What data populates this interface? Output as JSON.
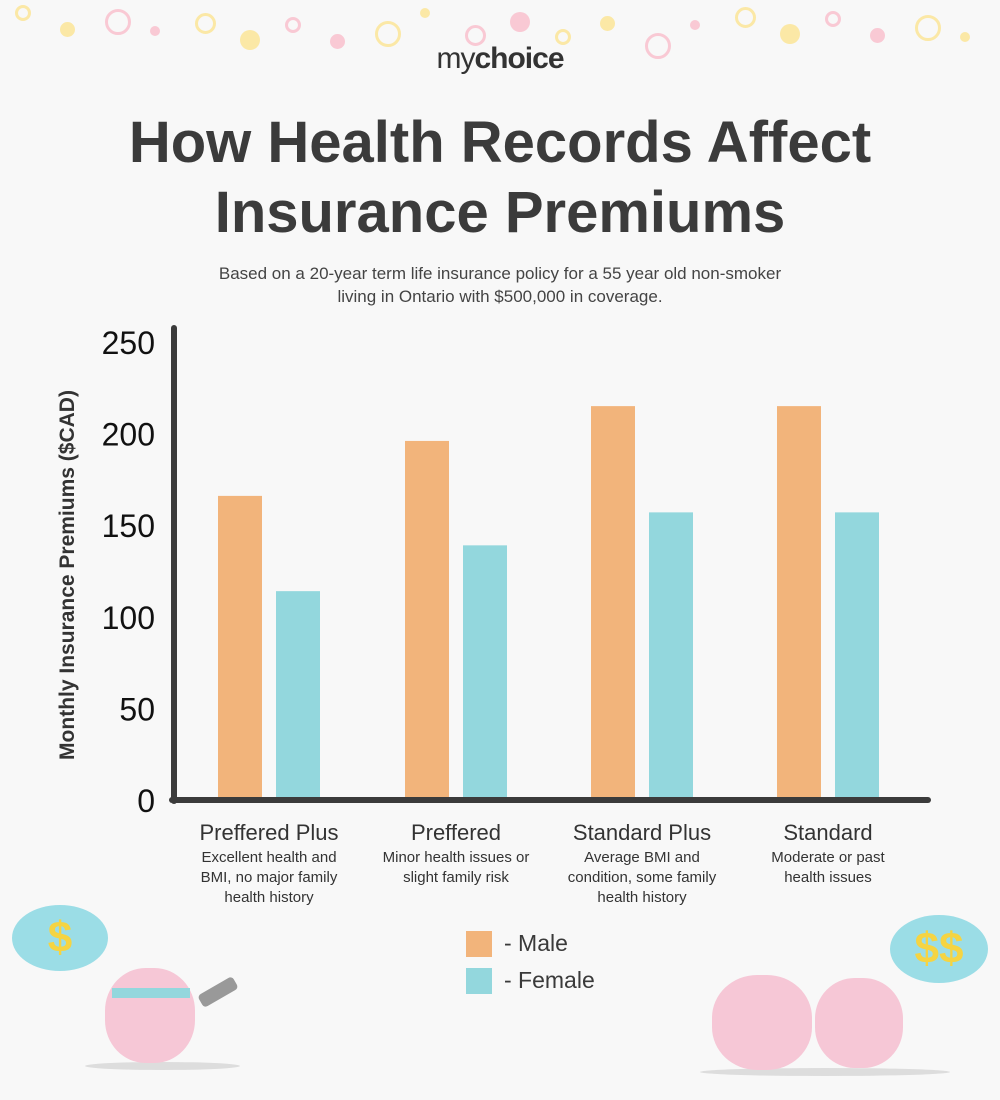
{
  "logo": {
    "light": "my",
    "bold": "choice"
  },
  "title": "How Health Records Affect Insurance Premiums",
  "subtitle_line1": "Based on a 20-year term life insurance policy for a 55 year old non-smoker",
  "subtitle_line2": "living in Ontario with $500,000 in coverage.",
  "colors": {
    "male": "#f2b47b",
    "female": "#93d7dd",
    "axis": "#3b3b3b"
  },
  "decorations": {
    "bubble_left": "$",
    "bubble_right": "$$"
  },
  "chart_data": {
    "type": "bar",
    "title": "How Health Records Affect Insurance Premiums",
    "ylabel": "Monthly Insurance Premiums ($CAD)",
    "xlabel": "",
    "ylim": [
      0,
      250
    ],
    "yticks": [
      "0",
      "50",
      "100",
      "150",
      "200",
      "250"
    ],
    "grid": false,
    "legend_position": "bottom-center",
    "categories": [
      "Preffered Plus",
      "Preffered",
      "Standard Plus",
      "Standard"
    ],
    "category_descriptions": [
      [
        "Excellent health and",
        "BMI, no major family",
        "health history"
      ],
      [
        "Minor health issues or",
        "slight family risk"
      ],
      [
        "Average BMI and",
        "condition, some family",
        "health history"
      ],
      [
        "Moderate or past",
        "health issues"
      ]
    ],
    "series": [
      {
        "name": "- Male",
        "values": [
          166,
          196,
          215,
          215
        ]
      },
      {
        "name": "- Female",
        "values": [
          114,
          139,
          157,
          157
        ]
      }
    ]
  }
}
